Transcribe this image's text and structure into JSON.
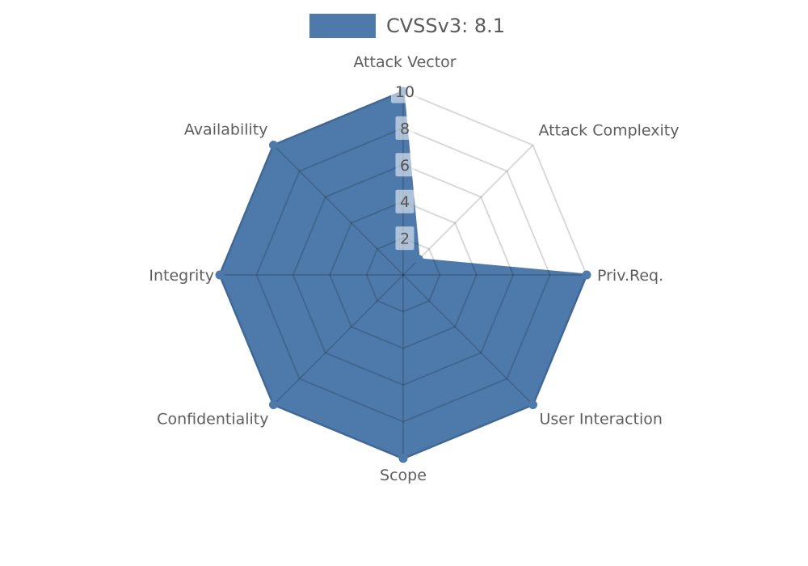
{
  "chart_data": {
    "type": "radar",
    "title": "",
    "categories": [
      "Attack Vector",
      "Attack Complexity",
      "Priv.Req.",
      "User Interaction",
      "Scope",
      "Confidentiality",
      "Integrity",
      "Availability"
    ],
    "series": [
      {
        "name": "CVSSv3: 8.1",
        "values": [
          10,
          1.2,
          10,
          10,
          10,
          10,
          10,
          10
        ]
      }
    ],
    "rlim": [
      0,
      10
    ],
    "rticks": [
      2,
      4,
      6,
      8,
      10
    ],
    "grid": true,
    "legend_position": "top-center",
    "colors": {
      "fill": "#4d79ab",
      "grid_line": "rgba(0,0,0,0.15)",
      "label": "#5e5e5e",
      "tick_label": "#555555",
      "tick_box": "rgba(255,255,255,0.55)",
      "legend_text": "#5a5a5a"
    }
  }
}
